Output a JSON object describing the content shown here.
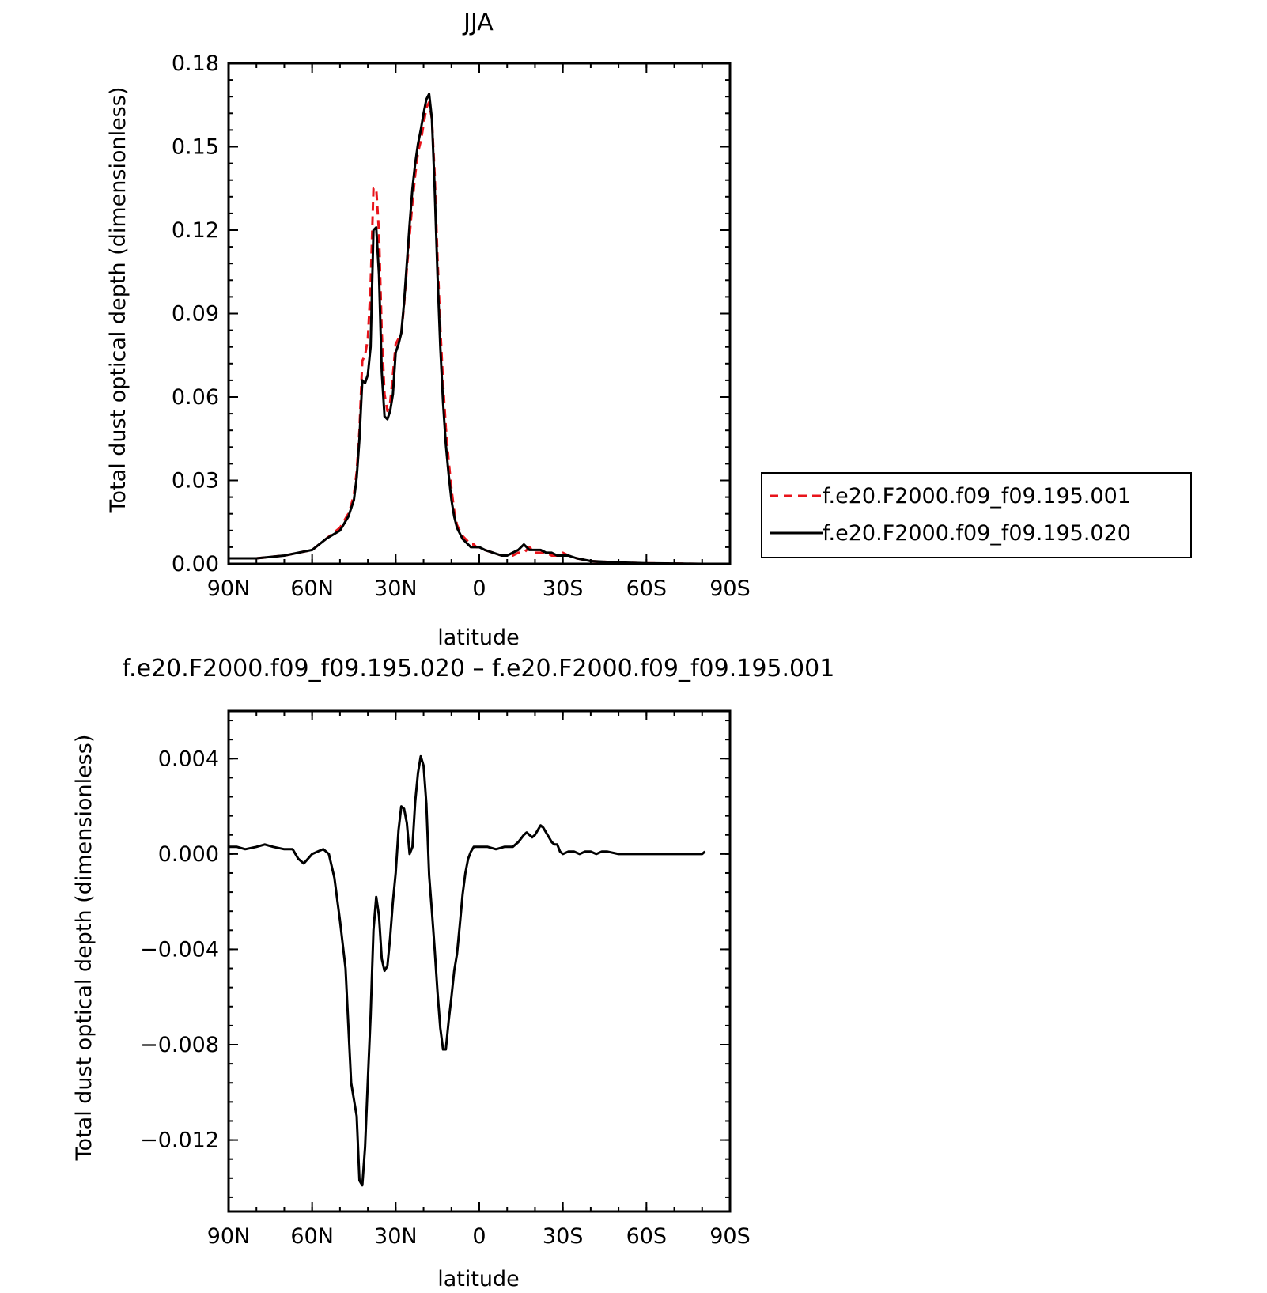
{
  "chart_data": [
    {
      "type": "line",
      "title": "JJA",
      "xlabel": "latitude",
      "ylabel": "Total dust optical depth (dimensionless)",
      "xlim": [
        90,
        -90
      ],
      "ylim": [
        0,
        0.18
      ],
      "x_ticks": [
        {
          "value": 90,
          "label": "90N"
        },
        {
          "value": 60,
          "label": "60N"
        },
        {
          "value": 30,
          "label": "30N"
        },
        {
          "value": 0,
          "label": "0"
        },
        {
          "value": -30,
          "label": "30S"
        },
        {
          "value": -60,
          "label": "60S"
        },
        {
          "value": -90,
          "label": "90S"
        }
      ],
      "y_ticks": [
        {
          "value": 0,
          "label": "0.00"
        },
        {
          "value": 0.03,
          "label": "0.03"
        },
        {
          "value": 0.06,
          "label": "0.06"
        },
        {
          "value": 0.09,
          "label": "0.09"
        },
        {
          "value": 0.12,
          "label": "0.12"
        },
        {
          "value": 0.15,
          "label": "0.15"
        },
        {
          "value": 0.18,
          "label": "0.18"
        }
      ],
      "legend_position": "right",
      "series": [
        {
          "name": "f.e20.F2000.f09_f09.195.001",
          "color": "#e8141b",
          "dash": "dashed",
          "x": [
            90,
            80,
            70,
            60,
            55,
            50,
            47,
            46,
            45,
            44,
            43,
            42,
            41,
            40,
            39,
            38,
            37,
            36,
            35,
            34,
            33,
            32,
            31,
            30,
            29,
            28,
            27,
            26,
            25,
            24,
            23,
            22,
            21,
            20,
            19,
            18,
            17,
            16,
            15,
            14,
            13,
            12,
            11,
            10,
            9,
            8,
            7,
            6,
            5,
            4,
            3,
            2,
            1,
            0,
            -2,
            -5,
            -8,
            -10,
            -12,
            -14,
            -15,
            -16,
            -17,
            -18,
            -20,
            -22,
            -24,
            -26,
            -28,
            -30,
            -32,
            -35,
            -40,
            -50,
            -60,
            -70,
            -80,
            -90
          ],
          "y": [
            0.002,
            0.002,
            0.003,
            0.005,
            0.009,
            0.013,
            0.018,
            0.021,
            0.025,
            0.033,
            0.048,
            0.073,
            0.075,
            0.081,
            0.1,
            0.135,
            0.135,
            0.119,
            0.083,
            0.061,
            0.055,
            0.058,
            0.068,
            0.079,
            0.081,
            0.083,
            0.093,
            0.106,
            0.118,
            0.13,
            0.14,
            0.148,
            0.152,
            0.158,
            0.164,
            0.166,
            0.16,
            0.14,
            0.11,
            0.085,
            0.065,
            0.049,
            0.037,
            0.027,
            0.019,
            0.014,
            0.012,
            0.01,
            0.009,
            0.008,
            0.007,
            0.007,
            0.006,
            0.006,
            0.005,
            0.004,
            0.003,
            0.003,
            0.003,
            0.004,
            0.004,
            0.004,
            0.005,
            0.006,
            0.004,
            0.004,
            0.004,
            0.003,
            0.003,
            0.004,
            0.003,
            0.002,
            0.001,
            0.0005,
            0.0002,
            0.0001,
            0,
            0
          ]
        },
        {
          "name": "f.e20.F2000.f09_f09.195.020",
          "color": "#000000",
          "dash": "solid",
          "x": [
            90,
            80,
            70,
            60,
            55,
            50,
            47,
            46,
            45,
            44,
            43,
            42,
            41,
            40,
            39,
            38,
            37,
            36,
            35,
            34,
            33,
            32,
            31,
            30,
            29,
            28,
            27,
            26,
            25,
            24,
            23,
            22,
            21,
            20,
            19,
            18,
            17,
            16,
            15,
            14,
            13,
            12,
            11,
            10,
            9,
            8,
            7,
            6,
            5,
            4,
            3,
            2,
            1,
            0,
            -2,
            -5,
            -8,
            -10,
            -12,
            -14,
            -15,
            -16,
            -17,
            -18,
            -20,
            -22,
            -24,
            -26,
            -28,
            -30,
            -32,
            -35,
            -40,
            -50,
            -60,
            -70,
            -80,
            -90
          ],
          "y": [
            0.002,
            0.002,
            0.003,
            0.005,
            0.009,
            0.012,
            0.017,
            0.02,
            0.023,
            0.031,
            0.045,
            0.066,
            0.065,
            0.068,
            0.078,
            0.12,
            0.121,
            0.104,
            0.069,
            0.053,
            0.052,
            0.055,
            0.061,
            0.076,
            0.079,
            0.083,
            0.094,
            0.108,
            0.122,
            0.135,
            0.144,
            0.151,
            0.156,
            0.162,
            0.167,
            0.169,
            0.16,
            0.135,
            0.104,
            0.078,
            0.058,
            0.043,
            0.032,
            0.023,
            0.017,
            0.013,
            0.011,
            0.009,
            0.008,
            0.007,
            0.006,
            0.006,
            0.006,
            0.006,
            0.005,
            0.004,
            0.003,
            0.003,
            0.004,
            0.005,
            0.006,
            0.007,
            0.006,
            0.005,
            0.005,
            0.005,
            0.004,
            0.004,
            0.003,
            0.003,
            0.003,
            0.002,
            0.001,
            0.0005,
            0.0002,
            0.0001,
            0,
            0
          ]
        }
      ]
    },
    {
      "type": "line",
      "title": "f.e20.F2000.f09_f09.195.020 – f.e20.F2000.f09_f09.195.001",
      "xlabel": "latitude",
      "ylabel": "Total dust optical depth (dimensionless)",
      "xlim": [
        90,
        -90
      ],
      "ylim": [
        -0.015,
        0.006
      ],
      "x_ticks": [
        {
          "value": 90,
          "label": "90N"
        },
        {
          "value": 60,
          "label": "60N"
        },
        {
          "value": 30,
          "label": "30N"
        },
        {
          "value": 0,
          "label": "0"
        },
        {
          "value": -30,
          "label": "30S"
        },
        {
          "value": -60,
          "label": "60S"
        },
        {
          "value": -90,
          "label": "90S"
        }
      ],
      "y_ticks": [
        {
          "value": 0.004,
          "label": "0.004"
        },
        {
          "value": 0,
          "label": "0.000"
        },
        {
          "value": -0.004,
          "label": "−0.004"
        },
        {
          "value": -0.008,
          "label": "−0.008"
        },
        {
          "value": -0.012,
          "label": "−0.012"
        }
      ],
      "series": [
        {
          "color": "#000000",
          "dash": "solid",
          "x": [
            90,
            87,
            84,
            80,
            77,
            74,
            70,
            67,
            65,
            63,
            60,
            58,
            56,
            54,
            52,
            50,
            48,
            46,
            44,
            43,
            42,
            41,
            40,
            39,
            38,
            37,
            36,
            35,
            34,
            33,
            32,
            31,
            30,
            29,
            28,
            27,
            26,
            25,
            24,
            23,
            22,
            21,
            20,
            19,
            18,
            17,
            16,
            15,
            14,
            13,
            12,
            11,
            10,
            9,
            8,
            7,
            6,
            5,
            4,
            3,
            2,
            1,
            0,
            -3,
            -6,
            -9,
            -12,
            -14,
            -16,
            -17,
            -18,
            -19,
            -20,
            -21,
            -22,
            -23,
            -24,
            -25,
            -26,
            -27,
            -28,
            -29,
            -30,
            -32,
            -34,
            -36,
            -38,
            -40,
            -42,
            -44,
            -46,
            -50,
            -55,
            -60,
            -65,
            -70,
            -75,
            -80,
            -81
          ],
          "y": [
            0.0003,
            0.0003,
            0.0002,
            0.0003,
            0.0004,
            0.0003,
            0.0002,
            0.0002,
            -0.0002,
            -0.0004,
            0,
            0.0001,
            0.0002,
            0,
            -0.001,
            -0.0028,
            -0.0048,
            -0.0096,
            -0.011,
            -0.0137,
            -0.0139,
            -0.0123,
            -0.0095,
            -0.0068,
            -0.0032,
            -0.0018,
            -0.0026,
            -0.0044,
            -0.0049,
            -0.0047,
            -0.0035,
            -0.002,
            -0.0008,
            0.001,
            0.002,
            0.0019,
            0.0013,
            0,
            0.0003,
            0.0022,
            0.0034,
            0.0041,
            0.0037,
            0.0021,
            -0.0009,
            -0.0024,
            -0.004,
            -0.0058,
            -0.0073,
            -0.0082,
            -0.0082,
            -0.007,
            -0.006,
            -0.0049,
            -0.0042,
            -0.003,
            -0.0017,
            -0.0008,
            -0.0002,
            0.0001,
            0.0003,
            0.0003,
            0.0003,
            0.0003,
            0.0002,
            0.0003,
            0.0003,
            0.0005,
            0.0008,
            0.0009,
            0.0008,
            0.0007,
            0.0008,
            0.001,
            0.0012,
            0.0011,
            0.0009,
            0.0007,
            0.0005,
            0.0004,
            0.0004,
            0.0001,
            0,
            0.0001,
            0.0001,
            0,
            0.0001,
            0.0001,
            0,
            0.0001,
            0.0001,
            0,
            0,
            0,
            0,
            0,
            0,
            0,
            0.0001
          ]
        }
      ]
    }
  ]
}
